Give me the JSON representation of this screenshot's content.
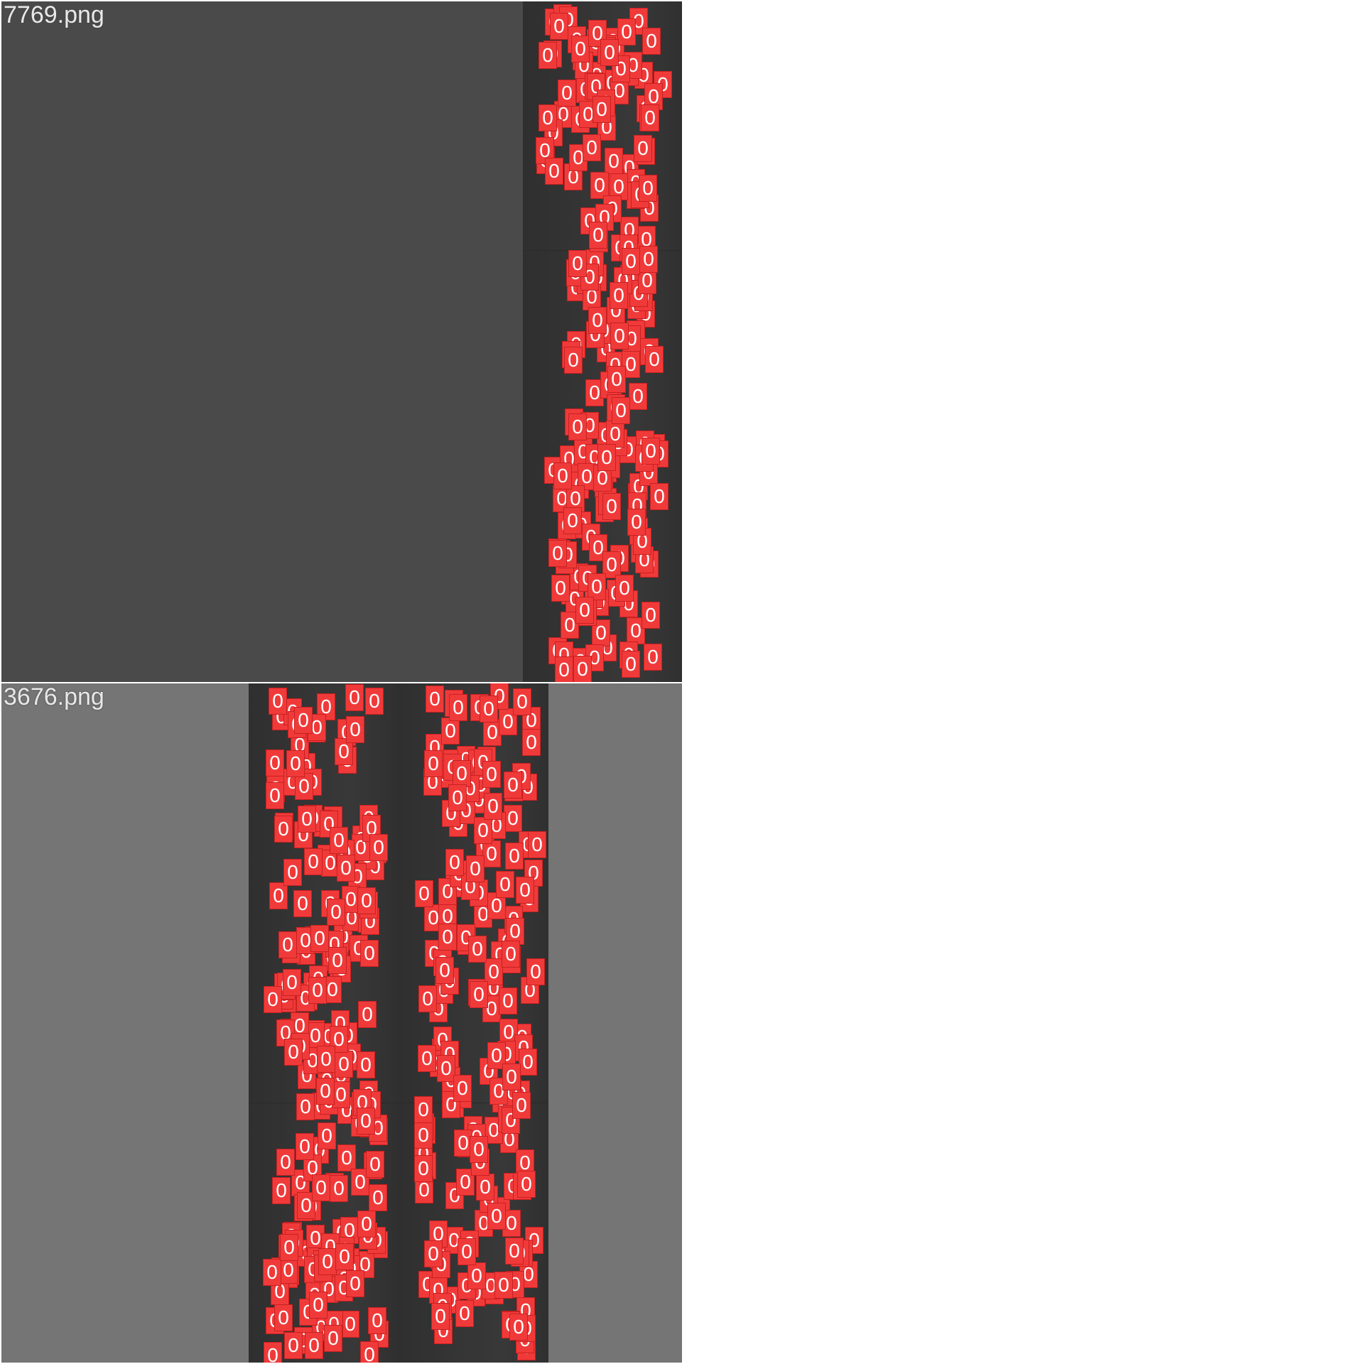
{
  "tiles": [
    {
      "filename": "7769.png",
      "background": "#4a4a4a"
    },
    {
      "filename": "3676.png",
      "background": "#757575"
    }
  ],
  "annotation": {
    "label": "0",
    "box_color": "#f03a3a",
    "text_color": "#ffffff"
  }
}
